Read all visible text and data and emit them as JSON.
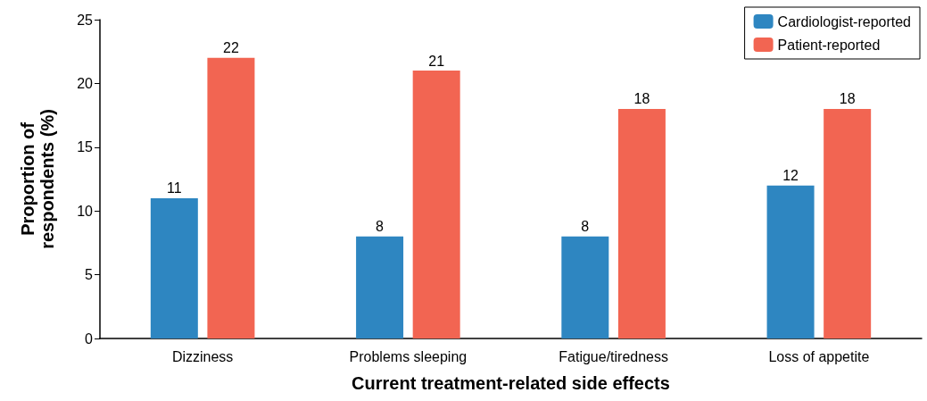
{
  "chart_data": {
    "type": "bar",
    "xlabel": "Current treatment-related side effects",
    "ylabel": "Proportion of\nrespondents (%)",
    "categories": [
      "Dizziness",
      "Problems sleeping",
      "Fatigue/tiredness",
      "Loss of appetite"
    ],
    "series": [
      {
        "name": "Cardiologist-reported",
        "color": "#2e86c1",
        "values": [
          11,
          8,
          8,
          12
        ]
      },
      {
        "name": "Patient-reported",
        "color": "#f26552",
        "values": [
          22,
          21,
          18,
          18
        ]
      }
    ],
    "ylim": [
      0,
      25
    ],
    "yticks": [
      0,
      5,
      10,
      15,
      20,
      25
    ],
    "grid": false,
    "legend": "top right",
    "data_labels": true
  }
}
